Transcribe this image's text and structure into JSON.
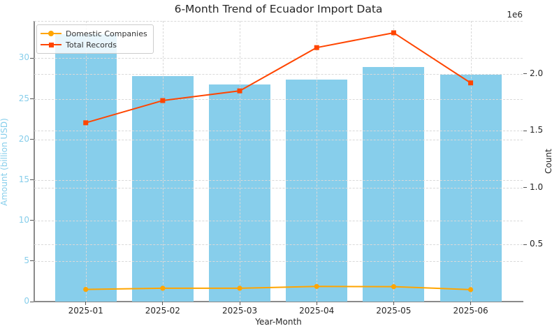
{
  "title": "6-Month Trend of Ecuador Import Data",
  "chart_data": {
    "type": "combo_bar_line",
    "title": "6-Month Trend of Ecuador Import Data",
    "categories": [
      "2025-01",
      "2025-02",
      "2025-03",
      "2025-04",
      "2025-05",
      "2025-06"
    ],
    "xlabel": "Year-Month",
    "grid": true,
    "left_axis": {
      "label": "Amount (billion USD)",
      "ticks": [
        0,
        5,
        10,
        15,
        20,
        25,
        30
      ],
      "lim": [
        0,
        34.6
      ],
      "color": "#87CEEB"
    },
    "right_axis": {
      "label": "Count",
      "ticks": [
        0.5,
        1.0,
        1.5,
        2.0
      ],
      "lim": [
        0,
        2464000
      ],
      "offset_label": "1e6",
      "color": "#262626"
    },
    "bar_series": {
      "name": "Amount (billion USD)",
      "axis": "left",
      "color": "#87CEEB",
      "values": [
        33.0,
        27.8,
        26.8,
        27.4,
        28.9,
        28.0
      ]
    },
    "line_series": [
      {
        "name": "Domestic Companies",
        "axis": "right",
        "color": "#FFA500",
        "marker": "circle",
        "values": [
          107000,
          117000,
          117000,
          133000,
          131000,
          105000
        ]
      },
      {
        "name": "Total Records",
        "axis": "right",
        "color": "#FF4500",
        "marker": "square",
        "values": [
          1570000,
          1765000,
          1850000,
          2230000,
          2360000,
          1920000
        ]
      }
    ],
    "legend": {
      "position": "upper-left",
      "entries": [
        "Domestic Companies",
        "Total Records"
      ]
    }
  }
}
